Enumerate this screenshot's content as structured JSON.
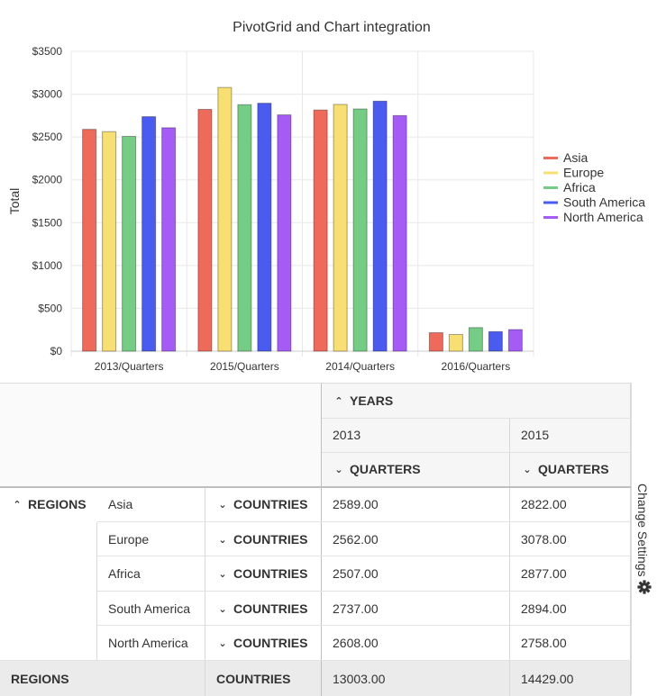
{
  "chart_data": {
    "type": "bar",
    "title": "PivotGrid and Chart integration",
    "ylabel": "Total",
    "xlabel": "",
    "ylim": [
      0,
      3500
    ],
    "y_ticks": [
      "$0",
      "$500",
      "$1000",
      "$1500",
      "$2000",
      "$2500",
      "$3000",
      "$3500"
    ],
    "y_tick_values": [
      0,
      500,
      1000,
      1500,
      2000,
      2500,
      3000,
      3500
    ],
    "categories": [
      "2013/Quarters",
      "2015/Quarters",
      "2014/Quarters",
      "2016/Quarters"
    ],
    "series": [
      {
        "name": "Asia",
        "color": "#ee6b5c",
        "values": [
          2589,
          2822,
          2815,
          215
        ]
      },
      {
        "name": "Europe",
        "color": "#f8df73",
        "values": [
          2562,
          3078,
          2880,
          195
        ]
      },
      {
        "name": "Africa",
        "color": "#75cd85",
        "values": [
          2507,
          2877,
          2827,
          275
        ]
      },
      {
        "name": "South America",
        "color": "#4a5bf0",
        "values": [
          2737,
          2894,
          2918,
          228
        ]
      },
      {
        "name": "North America",
        "color": "#a55cf5",
        "values": [
          2608,
          2758,
          2750,
          252
        ]
      }
    ],
    "legend_position": "right",
    "grid": true
  },
  "pivot": {
    "col_header": {
      "label": "YEARS",
      "years": [
        "2013",
        "2015"
      ],
      "quarters_label": "QUARTERS"
    },
    "row_header": {
      "label": "REGIONS",
      "countries_label": "COUNTRIES"
    },
    "rows": [
      {
        "region": "Asia",
        "v2013": "2589.00",
        "v2015": "2822.00"
      },
      {
        "region": "Europe",
        "v2013": "2562.00",
        "v2015": "3078.00"
      },
      {
        "region": "Africa",
        "v2013": "2507.00",
        "v2015": "2877.00"
      },
      {
        "region": "South America",
        "v2013": "2737.00",
        "v2015": "2894.00"
      },
      {
        "region": "North America",
        "v2013": "2608.00",
        "v2015": "2758.00"
      }
    ],
    "totals": {
      "label": "REGIONS",
      "countries": "COUNTRIES",
      "v2013": "13003.00",
      "v2015": "14429.00"
    }
  },
  "settings": {
    "label": "Change Settings",
    "icon": "gear-icon"
  }
}
